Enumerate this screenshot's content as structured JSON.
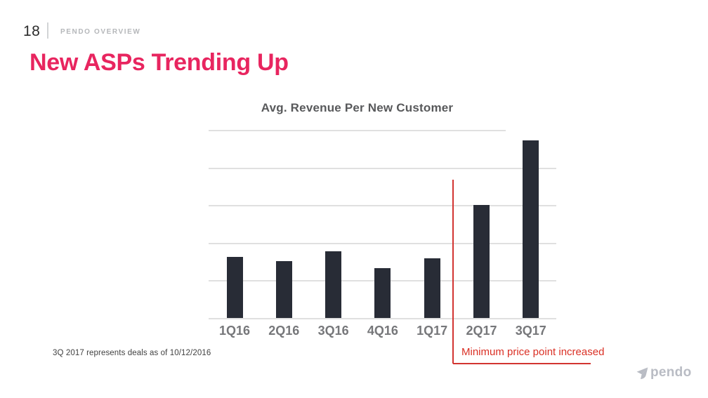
{
  "slide": {
    "page_number": "18",
    "eyebrow": "PENDO OVERVIEW",
    "title": "New ASPs Trending Up",
    "footnote": "3Q 2017 represents deals as of 10/12/2016",
    "logo_text": "pendo"
  },
  "colors": {
    "title_pink": "#E8255F",
    "bar_fill": "#282C36",
    "annotation_red": "#D23431",
    "gridline_gray": "#E0E0E0",
    "axis_label_gray": "#76777A",
    "chart_title_gray": "#58595B",
    "logo_gray": "#B9BCC4"
  },
  "chart_data": {
    "type": "bar",
    "title": "Avg. Revenue Per New Customer",
    "categories": [
      "1Q16",
      "2Q16",
      "3Q16",
      "4Q16",
      "1Q17",
      "2Q17",
      "3Q17"
    ],
    "values": [
      1.63,
      1.52,
      1.77,
      1.33,
      1.58,
      3.0,
      4.72
    ],
    "value_units": "relative units (y-axis unlabeled; 1 unit = one gridline interval)",
    "ylim": [
      0,
      5.05
    ],
    "xlabel": "",
    "ylabel": "",
    "gridline_count": 6,
    "legend": "none",
    "annotation": {
      "text": "Minimum price point increased",
      "marker": "red vertical line between 1Q17 and 2Q17 with horizontal underline",
      "applies_from_category": "2Q17"
    }
  }
}
